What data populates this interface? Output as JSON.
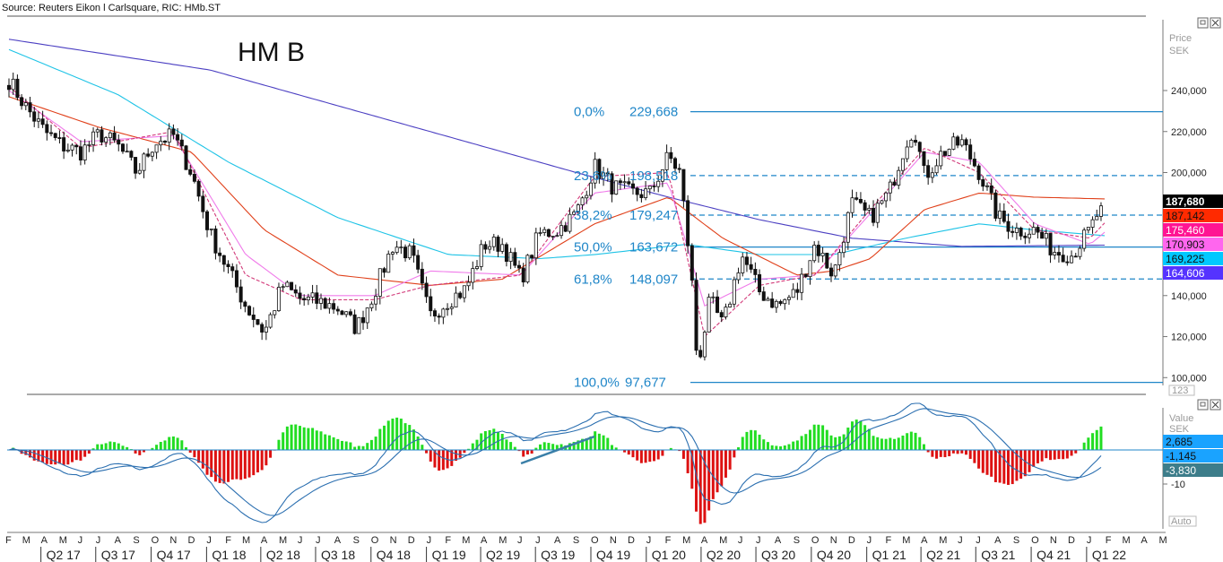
{
  "source": "Source: Reuters Eikon l Carlsquare, RIC: HMb.ST",
  "chart_data": [
    {
      "type": "candlestick",
      "title": "HM B",
      "axis_label": [
        "Price",
        "SEK"
      ],
      "axis_corner": "123",
      "ylim": [
        95,
        252
      ],
      "y_ticks": [
        {
          "value": 240,
          "label": "240,000",
          "big": false
        },
        {
          "value": 220,
          "label": "220,000",
          "big": false
        },
        {
          "value": 200,
          "label": "200,000",
          "big": true
        },
        {
          "value": 140,
          "label": "140,000",
          "big": false
        },
        {
          "value": 120,
          "label": "120,000",
          "big": false
        },
        {
          "value": 100,
          "label": "100,000",
          "big": false
        }
      ],
      "fibonacci": [
        {
          "pct": "0,0%",
          "value": 229.668,
          "label": "229,668",
          "style": "solid"
        },
        {
          "pct": "23,6%",
          "value": 198.518,
          "label": "198,518",
          "style": "dashed"
        },
        {
          "pct": "38,2%",
          "value": 179.247,
          "label": "179,247",
          "style": "dashed"
        },
        {
          "pct": "50,0%",
          "value": 163.672,
          "label": "163,672",
          "style": "solid"
        },
        {
          "pct": "61,8%",
          "value": 148.097,
          "label": "148,097",
          "style": "dashed"
        },
        {
          "pct": "100,0%",
          "value": 97.677,
          "label": "97,677",
          "style": "solid"
        }
      ],
      "price_anchors": [
        [
          "2017-02-01",
          245
        ],
        [
          "2017-03-01",
          232
        ],
        [
          "2017-04-01",
          220
        ],
        [
          "2017-05-01",
          213
        ],
        [
          "2017-06-01",
          210
        ],
        [
          "2017-07-01",
          219
        ],
        [
          "2017-08-01",
          213
        ],
        [
          "2017-09-01",
          200
        ],
        [
          "2017-10-01",
          215
        ],
        [
          "2017-11-01",
          218
        ],
        [
          "2017-12-01",
          200
        ],
        [
          "2018-01-01",
          170
        ],
        [
          "2018-02-01",
          152
        ],
        [
          "2018-03-01",
          135
        ],
        [
          "2018-04-01",
          122
        ],
        [
          "2018-05-01",
          145
        ],
        [
          "2018-06-01",
          138
        ],
        [
          "2018-07-01",
          137
        ],
        [
          "2018-08-01",
          134
        ],
        [
          "2018-09-01",
          124
        ],
        [
          "2018-10-01",
          142
        ],
        [
          "2018-11-01",
          165
        ],
        [
          "2018-12-01",
          160
        ],
        [
          "2019-01-01",
          130
        ],
        [
          "2019-02-01",
          138
        ],
        [
          "2019-03-01",
          143
        ],
        [
          "2019-04-01",
          165
        ],
        [
          "2019-05-01",
          165
        ],
        [
          "2019-06-01",
          148
        ],
        [
          "2019-07-01",
          170
        ],
        [
          "2019-08-01",
          172
        ],
        [
          "2019-09-01",
          180
        ],
        [
          "2019-10-01",
          203
        ],
        [
          "2019-11-01",
          193
        ],
        [
          "2019-12-01",
          190
        ],
        [
          "2020-01-01",
          190
        ],
        [
          "2020-02-01",
          208
        ],
        [
          "2020-02-20",
          200
        ],
        [
          "2020-03-10",
          150
        ],
        [
          "2020-03-20",
          105
        ],
        [
          "2020-04-10",
          138
        ],
        [
          "2020-05-01",
          125
        ],
        [
          "2020-06-01",
          160
        ],
        [
          "2020-07-01",
          142
        ],
        [
          "2020-08-01",
          135
        ],
        [
          "2020-09-01",
          142
        ],
        [
          "2020-10-01",
          165
        ],
        [
          "2020-11-01",
          150
        ],
        [
          "2020-12-01",
          185
        ],
        [
          "2021-01-01",
          178
        ],
        [
          "2021-02-01",
          190
        ],
        [
          "2021-03-01",
          215
        ],
        [
          "2021-03-15",
          222
        ],
        [
          "2021-04-01",
          198
        ],
        [
          "2021-05-01",
          210
        ],
        [
          "2021-06-01",
          215
        ],
        [
          "2021-07-01",
          200
        ],
        [
          "2021-08-01",
          178
        ],
        [
          "2021-09-01",
          172
        ],
        [
          "2021-10-01",
          172
        ],
        [
          "2021-11-01",
          162
        ],
        [
          "2021-12-01",
          160
        ],
        [
          "2022-01-01",
          172
        ],
        [
          "2022-01-25",
          187.68
        ]
      ],
      "ma_anchors": {
        "ma_200": [
          [
            "2017-02-01",
            265
          ],
          [
            "2018-01-01",
            250
          ],
          [
            "2019-01-01",
            220
          ],
          [
            "2019-09-01",
            200
          ],
          [
            "2020-02-01",
            188
          ],
          [
            "2020-07-01",
            177
          ],
          [
            "2020-12-01",
            168
          ],
          [
            "2021-06-01",
            164
          ],
          [
            "2022-01-25",
            164.606
          ]
        ],
        "ma_100": [
          [
            "2017-02-01",
            260
          ],
          [
            "2017-08-01",
            238
          ],
          [
            "2018-02-01",
            205
          ],
          [
            "2018-08-01",
            178
          ],
          [
            "2019-02-01",
            160
          ],
          [
            "2019-07-01",
            158
          ],
          [
            "2019-10-01",
            160
          ],
          [
            "2020-03-01",
            165
          ],
          [
            "2020-07-01",
            160
          ],
          [
            "2020-11-01",
            160
          ],
          [
            "2021-03-01",
            168
          ],
          [
            "2021-07-01",
            175
          ],
          [
            "2021-10-01",
            172
          ],
          [
            "2022-01-25",
            169.225
          ]
        ],
        "ma_50": [
          [
            "2017-02-01",
            237
          ],
          [
            "2017-07-01",
            222
          ],
          [
            "2017-12-01",
            210
          ],
          [
            "2018-04-01",
            172
          ],
          [
            "2018-08-01",
            150
          ],
          [
            "2019-01-01",
            145
          ],
          [
            "2019-05-01",
            148
          ],
          [
            "2019-10-01",
            175
          ],
          [
            "2020-02-01",
            188
          ],
          [
            "2020-05-01",
            168
          ],
          [
            "2020-09-01",
            150
          ],
          [
            "2020-11-01",
            152
          ],
          [
            "2021-01-01",
            158
          ],
          [
            "2021-04-01",
            182
          ],
          [
            "2021-07-01",
            190
          ],
          [
            "2021-10-01",
            188
          ],
          [
            "2022-01-25",
            187.142
          ]
        ],
        "ma_20": [
          [
            "2017-02-01",
            240
          ],
          [
            "2017-06-01",
            215
          ],
          [
            "2017-11-01",
            218
          ],
          [
            "2018-03-01",
            160
          ],
          [
            "2018-06-01",
            140
          ],
          [
            "2018-10-01",
            140
          ],
          [
            "2019-01-01",
            152
          ],
          [
            "2019-06-01",
            150
          ],
          [
            "2019-10-01",
            190
          ],
          [
            "2020-02-01",
            195
          ],
          [
            "2020-04-01",
            135
          ],
          [
            "2020-07-01",
            148
          ],
          [
            "2020-10-01",
            150
          ],
          [
            "2021-01-01",
            180
          ],
          [
            "2021-04-01",
            210
          ],
          [
            "2021-07-01",
            205
          ],
          [
            "2021-10-01",
            175
          ],
          [
            "2022-01-01",
            165
          ],
          [
            "2022-01-25",
            170.903
          ]
        ],
        "ma_10": [
          [
            "2017-02-01",
            242
          ],
          [
            "2017-06-01",
            212
          ],
          [
            "2017-11-01",
            220
          ],
          [
            "2018-03-01",
            150
          ],
          [
            "2018-06-01",
            138
          ],
          [
            "2018-10-01",
            138
          ],
          [
            "2019-01-01",
            145
          ],
          [
            "2019-06-01",
            150
          ],
          [
            "2019-10-01",
            198
          ],
          [
            "2020-02-01",
            200
          ],
          [
            "2020-04-01",
            120
          ],
          [
            "2020-07-01",
            145
          ],
          [
            "2020-10-01",
            150
          ],
          [
            "2021-01-01",
            182
          ],
          [
            "2021-04-01",
            212
          ],
          [
            "2021-07-01",
            200
          ],
          [
            "2021-10-01",
            172
          ],
          [
            "2022-01-01",
            168
          ],
          [
            "2022-01-25",
            175.46
          ]
        ]
      },
      "last_values": [
        {
          "label": "187,680",
          "bg": "#000000",
          "fg": "#ffffff",
          "bold": true
        },
        {
          "label": "187,142",
          "bg": "#ff2a00",
          "fg": "#111111",
          "bold": false
        },
        {
          "label": "175,460",
          "bg": "#ff1493",
          "fg": "#ffffff",
          "bold": false
        },
        {
          "label": "170,903",
          "bg": "#ff66ee",
          "fg": "#111111",
          "bold": false
        },
        {
          "label": "169,225",
          "bg": "#00c8ff",
          "fg": "#111111",
          "bold": false
        },
        {
          "label": "164,606",
          "bg": "#5533ff",
          "fg": "#ffffff",
          "bold": false
        }
      ],
      "colors": {
        "candle": "#111111",
        "ma_200": "#4b3fc2",
        "ma_100": "#1ec3e6",
        "ma_50": "#e0401a",
        "ma_20": "#f07bea",
        "ma_10": "#d23a7a",
        "fib": "#1f86c8"
      }
    },
    {
      "type": "macd",
      "axis_label": [
        "Value",
        "SEK"
      ],
      "axis_corner": "Auto",
      "ylim": [
        -17,
        12
      ],
      "y_ticks": [
        {
          "value": -10,
          "label": "-10"
        }
      ],
      "last_values": [
        {
          "label": "2,685",
          "bg": "#1aa3ff",
          "fg": "#111111"
        },
        {
          "label": "-1,145",
          "bg": "#1aa3ff",
          "fg": "#111111"
        },
        {
          "label": "-3,830",
          "bg": "#3d7d8a",
          "fg": "#ffffff"
        }
      ],
      "colors": {
        "pos": "#22dd22",
        "neg": "#dd1111",
        "line": "#2b6fb0",
        "trend": "#3a7fa8"
      }
    }
  ],
  "x_axis": {
    "months": [
      "F",
      "M",
      "A",
      "M",
      "J",
      "J",
      "A",
      "S",
      "O",
      "N",
      "D",
      "J",
      "F",
      "M",
      "A",
      "M",
      "J",
      "J",
      "A",
      "S",
      "O",
      "N",
      "D",
      "J",
      "F",
      "M",
      "A",
      "M",
      "J",
      "J",
      "A",
      "S",
      "O",
      "N",
      "D",
      "J",
      "F",
      "M",
      "A",
      "M",
      "J",
      "J",
      "A",
      "S",
      "O",
      "N",
      "D",
      "J",
      "F",
      "M",
      "A",
      "M",
      "J",
      "J",
      "A",
      "S",
      "O",
      "N",
      "D",
      "J",
      "F",
      "M",
      "A",
      "M"
    ],
    "quarters": [
      "Q2 17",
      "Q3 17",
      "Q4 17",
      "Q1 18",
      "Q2 18",
      "Q3 18",
      "Q4 18",
      "Q1 19",
      "Q2 19",
      "Q3 19",
      "Q4 19",
      "Q1 20",
      "Q2 20",
      "Q3 20",
      "Q4 20",
      "Q1 21",
      "Q2 21",
      "Q3 21",
      "Q4 21",
      "Q1 22"
    ]
  }
}
